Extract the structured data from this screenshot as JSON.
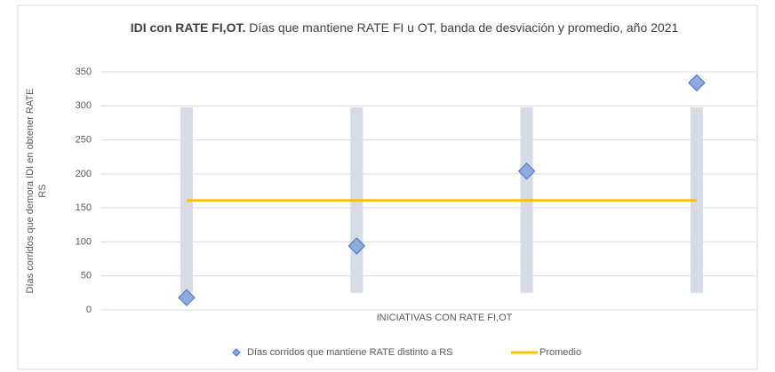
{
  "chart_data": {
    "type": "scatter",
    "title_bold": "IDI con RATE FI,OT.",
    "title": "Días que mantiene RATE FI u OT, banda de desviación y promedio, año 2021",
    "y_label": "Días corridos que demora IDI en obtener RATE RS",
    "x_label": "INICIATIVAS CON RATE FI,OT",
    "categories": [
      null,
      null,
      null,
      null
    ],
    "band_low": [
      25,
      25,
      25,
      25
    ],
    "band_high": [
      298,
      298,
      298,
      298
    ],
    "band_color": "#d6dce5",
    "series": [
      {
        "name": "Días corridos que mantiene RATE distinto a RS",
        "color": "#8faadc",
        "values": [
          18,
          94,
          204,
          334
        ]
      },
      {
        "name": "Promedio",
        "color": "#ffc000",
        "values": [
          161,
          161,
          161,
          161
        ]
      }
    ],
    "ylim": [
      0,
      350
    ],
    "yticks": [
      0,
      50,
      100,
      150,
      200,
      250,
      300,
      350
    ],
    "grid": true
  }
}
